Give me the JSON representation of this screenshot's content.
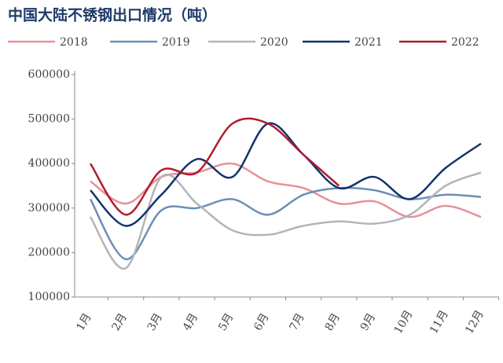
{
  "chart_data": {
    "type": "line",
    "title": "中国大陆不锈钢出口情况（吨）",
    "categories": [
      "1月",
      "2月",
      "3月",
      "4月",
      "5月",
      "6月",
      "7月",
      "8月",
      "9月",
      "10月",
      "11月",
      "12月"
    ],
    "series": [
      {
        "name": "2018",
        "color": "#e8909a",
        "values": [
          360000,
          310000,
          370000,
          380000,
          400000,
          360000,
          345000,
          310000,
          315000,
          280000,
          305000,
          280000
        ]
      },
      {
        "name": "2019",
        "color": "#6a8fb3",
        "values": [
          320000,
          185000,
          295000,
          300000,
          320000,
          285000,
          330000,
          345000,
          340000,
          320000,
          330000,
          325000
        ]
      },
      {
        "name": "2020",
        "color": "#b4b4b8",
        "values": [
          280000,
          165000,
          370000,
          310000,
          250000,
          240000,
          260000,
          270000,
          265000,
          285000,
          350000,
          380000
        ]
      },
      {
        "name": "2021",
        "color": "#14336b",
        "values": [
          340000,
          260000,
          330000,
          410000,
          370000,
          490000,
          420000,
          345000,
          370000,
          320000,
          390000,
          445000
        ]
      },
      {
        "name": "2022",
        "color": "#b01c2e",
        "values": [
          400000,
          285000,
          385000,
          380000,
          490000,
          490000,
          420000,
          350000,
          null,
          null,
          null,
          null
        ]
      }
    ],
    "ylim": [
      100000,
      600000
    ],
    "yticks": [
      100000,
      200000,
      300000,
      400000,
      500000,
      600000
    ]
  }
}
